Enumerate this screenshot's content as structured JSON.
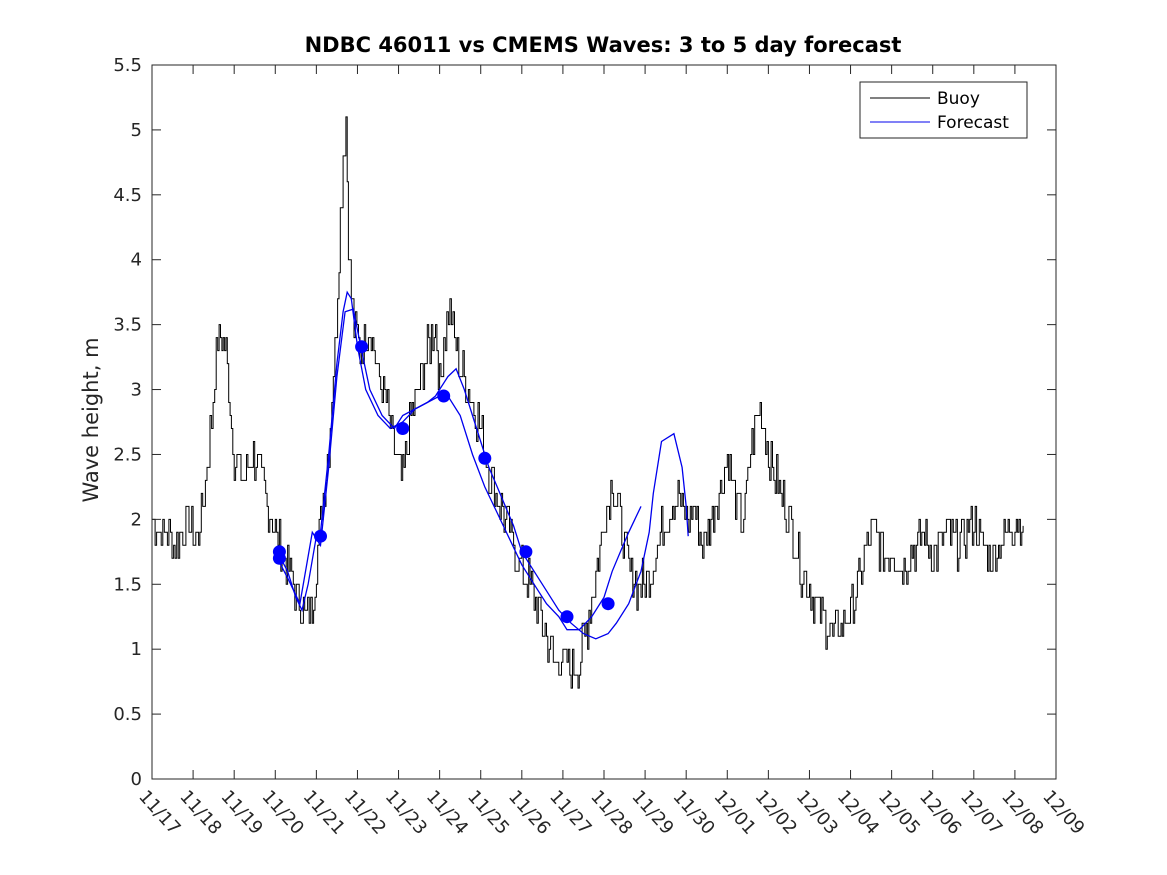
{
  "chart_data": {
    "type": "line",
    "title": "NDBC 46011 vs CMEMS Waves: 3 to 5 day forecast",
    "xlabel": "",
    "ylabel": "Wave height, m",
    "x_ticks": [
      "11/17",
      "11/18",
      "11/19",
      "11/20",
      "11/21",
      "11/22",
      "11/23",
      "11/24",
      "11/25",
      "11/26",
      "11/27",
      "11/28",
      "11/29",
      "11/30",
      "12/01",
      "12/02",
      "12/03",
      "12/04",
      "12/05",
      "12/06",
      "12/07",
      "12/08",
      "12/09"
    ],
    "y_ticks": [
      "0",
      "0.5",
      "1",
      "1.5",
      "2",
      "2.5",
      "3",
      "3.5",
      "4",
      "4.5",
      "5",
      "5.5"
    ],
    "xlim": [
      "11/17",
      "12/09"
    ],
    "ylim": [
      0,
      5.5
    ],
    "grid": false,
    "legend_position": "top-right",
    "colors": {
      "buoy": "#000000",
      "forecast": "#0000ee",
      "markers": "#0000ff"
    },
    "series": [
      {
        "name": "Buoy",
        "x_day": [
          0,
          0.3,
          0.6,
          0.9,
          1.1,
          1.3,
          1.45,
          1.6,
          1.8,
          2.0,
          2.2,
          2.4,
          2.6,
          2.8,
          3.0,
          3.2,
          3.4,
          3.55,
          3.75,
          3.9,
          4.1,
          4.3,
          4.45,
          4.55,
          4.65,
          4.72,
          4.78,
          4.85,
          4.95,
          5.1,
          5.3,
          5.5,
          5.7,
          5.9,
          6.1,
          6.3,
          6.5,
          6.7,
          6.9,
          7.0,
          7.1,
          7.25,
          7.4,
          7.6,
          7.8,
          8.0,
          8.2,
          8.4,
          8.6,
          8.8,
          9.0,
          9.2,
          9.4,
          9.6,
          9.8,
          10.0,
          10.2,
          10.4,
          10.6,
          10.8,
          11.0,
          11.2,
          11.4,
          11.6,
          11.8,
          12.0,
          12.2,
          12.4,
          12.6,
          12.8,
          13.0,
          13.2,
          13.4,
          13.6,
          13.8,
          14.0,
          14.2,
          14.4,
          14.6,
          14.8,
          15.0,
          15.2,
          15.4,
          15.6,
          15.8,
          16.0,
          16.2,
          16.4,
          16.6,
          16.8,
          17.0,
          17.2,
          17.4,
          17.6,
          17.8,
          18.0,
          18.2,
          18.4,
          18.6,
          18.8,
          19.0,
          19.2,
          19.4,
          19.6,
          19.8,
          20.0,
          20.2,
          20.4,
          20.6,
          20.8,
          21.0,
          21.2
        ],
        "values": [
          2.0,
          1.9,
          1.8,
          2.0,
          1.8,
          2.3,
          2.8,
          3.4,
          3.3,
          2.5,
          2.3,
          2.5,
          2.4,
          2.1,
          1.9,
          1.7,
          1.55,
          1.35,
          1.25,
          1.3,
          2.0,
          2.6,
          3.3,
          4.1,
          4.8,
          5.1,
          4.2,
          3.7,
          3.4,
          3.3,
          3.5,
          3.1,
          2.9,
          2.5,
          2.3,
          2.8,
          3.0,
          3.3,
          3.5,
          3.0,
          3.4,
          3.6,
          3.3,
          3.1,
          2.9,
          2.7,
          2.4,
          2.2,
          2.0,
          1.8,
          1.6,
          1.5,
          1.3,
          1.1,
          0.9,
          0.9,
          0.85,
          0.9,
          1.2,
          1.6,
          2.0,
          2.3,
          2.0,
          1.6,
          1.5,
          1.5,
          1.7,
          1.9,
          2.1,
          2.2,
          2.0,
          2.1,
          1.8,
          2.0,
          2.2,
          2.5,
          2.1,
          2.0,
          2.6,
          2.9,
          2.5,
          2.3,
          2.1,
          1.9,
          1.6,
          1.5,
          1.3,
          1.2,
          1.1,
          1.2,
          1.3,
          1.5,
          1.8,
          1.9,
          1.7,
          1.8,
          1.6,
          1.7,
          1.8,
          1.9,
          1.7,
          1.8,
          1.9,
          1.8,
          1.9,
          2.0,
          1.8,
          1.7,
          1.8,
          1.9,
          2.0,
          1.95
        ]
      },
      {
        "name": "Forecast",
        "segments": [
          {
            "x_day": [
              3.05,
              3.3,
              3.5,
              3.65,
              3.8,
              4.0,
              4.1,
              4.3,
              4.5,
              4.65,
              4.75,
              4.85,
              5.0,
              5.2,
              5.5,
              5.8,
              6.1,
              6.4,
              6.7,
              6.9,
              7.0,
              7.2,
              7.4,
              7.6,
              7.8,
              8.0,
              8.2,
              8.4,
              8.6,
              8.8,
              9.0,
              9.3,
              9.6,
              9.9,
              10.2,
              10.5,
              10.8,
              11.1,
              11.3,
              11.6,
              11.9,
              12.1,
              12.2,
              12.4,
              12.7,
              12.9,
              13.0,
              13.05
            ],
            "values": [
              1.75,
              1.6,
              1.4,
              1.3,
              1.5,
              1.87,
              1.9,
              2.5,
              3.2,
              3.6,
              3.75,
              3.7,
              3.33,
              3.0,
              2.8,
              2.7,
              2.75,
              2.85,
              2.9,
              2.95,
              3.0,
              3.1,
              3.16,
              3.0,
              2.8,
              2.6,
              2.4,
              2.25,
              2.1,
              1.95,
              1.75,
              1.6,
              1.45,
              1.3,
              1.2,
              1.12,
              1.08,
              1.12,
              1.2,
              1.35,
              1.6,
              1.9,
              2.2,
              2.6,
              2.66,
              2.4,
              2.1,
              1.87
            ]
          },
          {
            "x_day": [
              3.05,
              3.3,
              3.6,
              3.9,
              4.1,
              4.3,
              4.5,
              4.7,
              4.9,
              5.1,
              5.3,
              5.6,
              5.9,
              6.1,
              6.4,
              6.7,
              7.0,
              7.2,
              7.5,
              7.8,
              8.1,
              8.4,
              8.7,
              9.0,
              9.3,
              9.6,
              9.9,
              10.1,
              10.4,
              10.7,
              11.0,
              11.2,
              11.4,
              11.6,
              11.9
            ],
            "values": [
              1.7,
              1.55,
              1.35,
              1.9,
              1.8,
              2.4,
              3.1,
              3.6,
              3.62,
              3.3,
              3.0,
              2.8,
              2.7,
              2.8,
              2.85,
              2.9,
              2.95,
              2.95,
              2.8,
              2.5,
              2.25,
              2.05,
              1.85,
              1.65,
              1.5,
              1.35,
              1.25,
              1.15,
              1.15,
              1.25,
              1.4,
              1.6,
              1.75,
              1.9,
              2.1
            ]
          }
        ],
        "markers": {
          "x_day": [
            3.1,
            3.1,
            4.1,
            5.1,
            6.1,
            7.1,
            8.1,
            9.1,
            10.1,
            11.1
          ],
          "values": [
            1.75,
            1.7,
            1.87,
            3.33,
            2.7,
            2.95,
            2.47,
            1.75,
            1.25,
            1.35
          ]
        }
      }
    ]
  }
}
